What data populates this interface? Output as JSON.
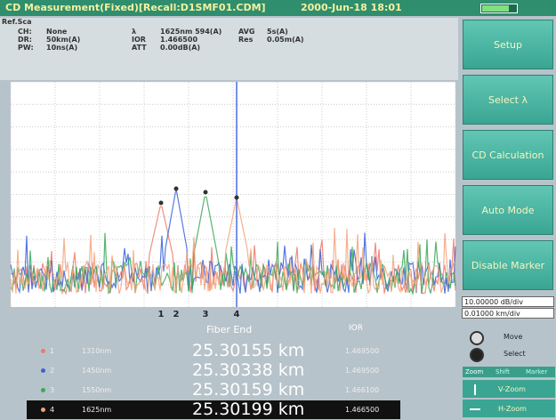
{
  "header": {
    "title": "CD Measurement(Fixed)[Recall:D1SMF01.CDM]",
    "datetime": "2000-Jun-18 18:01"
  },
  "info": {
    "label": "Ref.Sca",
    "fields": [
      {
        "key": "CH:",
        "value": "None"
      },
      {
        "key": "DR:",
        "value": "50km(A)"
      },
      {
        "key": "PW:",
        "value": "10ns(A)"
      },
      {
        "key": "λ",
        "value": "1625nm 594(A)"
      },
      {
        "key": "IOR",
        "value": "1.466500"
      },
      {
        "key": "ATT",
        "value": "0.00dB(A)"
      },
      {
        "key": "AVG",
        "value": "5s(A)"
      },
      {
        "key": "Res",
        "value": "0.05m(A)"
      }
    ]
  },
  "buttons": [
    "Setup",
    "Select λ",
    "CD Calculation",
    "Auto Mode",
    "Disable Marker"
  ],
  "scale": {
    "vertical": "10.00000 dB/div",
    "horizontal": "0.01000 km/div"
  },
  "knobs": [
    "Move",
    "Select"
  ],
  "tabs": [
    "Zoom",
    "Shift",
    "Marker"
  ],
  "zoom": [
    "V-Zoom",
    "H-Zoom"
  ],
  "markers": [
    "1",
    "2",
    "3",
    "4"
  ],
  "table": {
    "headers": [
      "Fiber End",
      "IOR"
    ],
    "rows": [
      {
        "index": "1",
        "wavelength": "1310nm",
        "distance": "25.30155 km",
        "ior": "1.469500"
      },
      {
        "index": "2",
        "wavelength": "1450nm",
        "distance": "25.30338 km",
        "ior": "1.469500"
      },
      {
        "index": "3",
        "wavelength": "1550nm",
        "distance": "25.30159 km",
        "ior": "1.466100"
      },
      {
        "index": "4",
        "wavelength": "1625nm",
        "distance": "25.30199 km",
        "ior": "1.466500"
      }
    ]
  }
}
